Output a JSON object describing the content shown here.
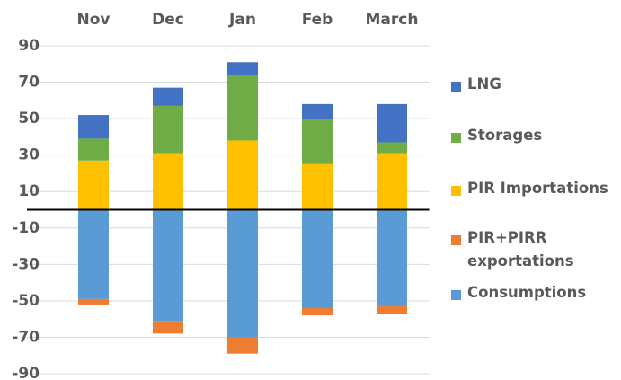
{
  "chart_data": {
    "type": "bar",
    "categories": [
      "Nov",
      "Dec",
      "Jan",
      "Feb",
      "March"
    ],
    "series": [
      {
        "name": "LNG",
        "color": "#4472c4",
        "values": [
          13,
          10,
          7,
          8,
          21
        ]
      },
      {
        "name": "Storages",
        "color": "#70ad47",
        "values": [
          12,
          26,
          36,
          25,
          6
        ]
      },
      {
        "name": "PIR Importations",
        "color": "#ffc000",
        "values": [
          27,
          31,
          38,
          25,
          31
        ]
      },
      {
        "name": "PIR+PIRR exportations",
        "color": "#ed7d31",
        "values": [
          -3,
          -7,
          -9,
          -4,
          -4
        ]
      },
      {
        "name": "Consumptions",
        "color": "#5b9bd5",
        "values": [
          -49,
          -61,
          -70,
          -54,
          -53
        ]
      }
    ],
    "stacked": true,
    "ylim": [
      -90,
      90
    ],
    "yticks": [
      90,
      70,
      50,
      30,
      10,
      -10,
      -30,
      -50,
      -70,
      -90
    ],
    "grid": true,
    "legend": "right"
  }
}
